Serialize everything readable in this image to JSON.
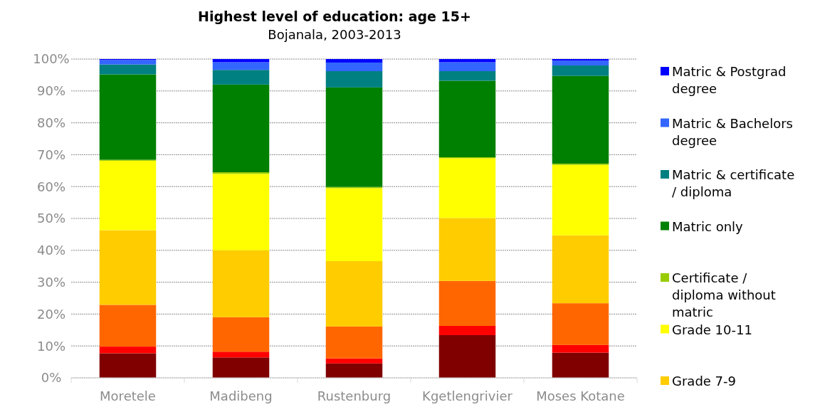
{
  "chart_data": {
    "type": "bar",
    "stacked": true,
    "title": "Highest level of education: age 15+",
    "subtitle": "Bojanala, 2003-2013",
    "categories": [
      "Moretele",
      "Madibeng",
      "Rustenburg",
      "Kgetlengrivier",
      "Moses Kotane"
    ],
    "series": [
      {
        "color": "#800000",
        "values": [
          7.7,
          6.4,
          4.5,
          13.4,
          7.9
        ]
      },
      {
        "color": "#ff0000",
        "values": [
          2.1,
          1.8,
          1.6,
          2.9,
          2.4
        ]
      },
      {
        "color": "#ff6600",
        "values": [
          13.1,
          10.8,
          10.0,
          14.1,
          13.1
        ]
      },
      {
        "name": "Grade 7-9",
        "color": "#ffcc00",
        "values": [
          23.4,
          21.0,
          20.5,
          19.7,
          21.3
        ]
      },
      {
        "name": "Grade 10-11",
        "color": "#ffff00",
        "values": [
          21.8,
          24.0,
          22.9,
          18.8,
          22.1
        ]
      },
      {
        "name": "Certificate / diploma without matric",
        "color": "#99cc00",
        "values": [
          0.3,
          0.5,
          0.4,
          0.3,
          0.4
        ]
      },
      {
        "name": "Matric only",
        "color": "#008000",
        "values": [
          26.8,
          27.5,
          31.2,
          24.0,
          27.5
        ]
      },
      {
        "name": "Matric & certificate / diploma",
        "color": "#008080",
        "values": [
          3.1,
          4.6,
          5.1,
          3.0,
          3.3
        ]
      },
      {
        "name": "Matric & Bachelors degree",
        "color": "#3366ff",
        "values": [
          1.4,
          2.4,
          2.7,
          2.8,
          1.5
        ]
      },
      {
        "name": "Matric & Postgrad degree",
        "color": "#0000ff",
        "values": [
          0.3,
          1.0,
          1.1,
          1.0,
          0.5
        ]
      }
    ],
    "ylim": [
      0,
      100
    ],
    "yticks": [
      {
        "value": 0,
        "label": "0%"
      },
      {
        "value": 10,
        "label": "10%"
      },
      {
        "value": 20,
        "label": "20%"
      },
      {
        "value": 30,
        "label": "30%"
      },
      {
        "value": 40,
        "label": "40%"
      },
      {
        "value": 50,
        "label": "50%"
      },
      {
        "value": 60,
        "label": "60%"
      },
      {
        "value": 70,
        "label": "70%"
      },
      {
        "value": 80,
        "label": "80%"
      },
      {
        "value": 90,
        "label": "90%"
      },
      {
        "value": 100,
        "label": "100%"
      }
    ],
    "grid": "y",
    "legend": "right"
  }
}
